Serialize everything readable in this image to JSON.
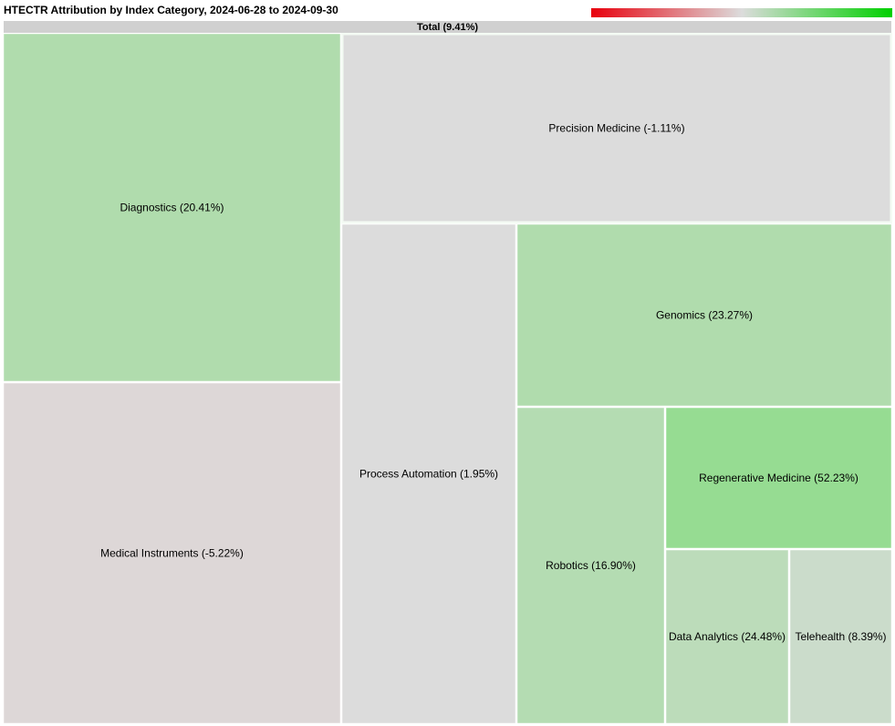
{
  "title": "HTECTR Attribution by Index Category, 2024-06-28 to 2024-09-30",
  "total_label": "Total (9.41%)",
  "colors": {
    "negative": "#e8000d",
    "neutral": "#dcdcdc",
    "positive": "#00d000",
    "total_bar": "#d0d0d0",
    "border": "#ffffff"
  },
  "chart_data": {
    "type": "treemap",
    "title": "HTECTR Attribution by Index Category, 2024-06-28 to 2024-09-30",
    "root": {
      "label": "Total (9.41%)",
      "name": "Total",
      "return_pct": 9.41
    },
    "items": [
      {
        "name": "Diagnostics",
        "return_pct": 20.41,
        "label": "Diagnostics (20.41%)",
        "color": "#b0dcad"
      },
      {
        "name": "Medical Instruments",
        "return_pct": -5.22,
        "label": "Medical Instruments (-5.22%)",
        "color": "#ddd7d7"
      },
      {
        "name": "Precision Medicine",
        "return_pct": -1.11,
        "label": "Precision Medicine (-1.11%)",
        "color": "#dcdcdc"
      },
      {
        "name": "Process Automation",
        "return_pct": 1.95,
        "label": "Process Automation (1.95%)",
        "color": "#dcdcdc"
      },
      {
        "name": "Genomics",
        "return_pct": 23.27,
        "label": "Genomics (23.27%)",
        "color": "#b0dcad"
      },
      {
        "name": "Robotics",
        "return_pct": 16.9,
        "label": "Robotics (16.90%)",
        "color": "#b4dcb2"
      },
      {
        "name": "Regenerative Medicine",
        "return_pct": 52.23,
        "label": "Regenerative Medicine (52.23%)",
        "color": "#96dc92"
      },
      {
        "name": "Data Analytics",
        "return_pct": 24.48,
        "label": "Data Analytics (24.48%)",
        "color": "#bcdcba"
      },
      {
        "name": "Telehealth",
        "return_pct": 8.39,
        "label": "Telehealth (8.39%)",
        "color": "#cbdccb"
      }
    ],
    "color_scale": {
      "min_color": "#e8000d",
      "mid_color": "#dcdcdc",
      "max_color": "#00d000"
    }
  }
}
